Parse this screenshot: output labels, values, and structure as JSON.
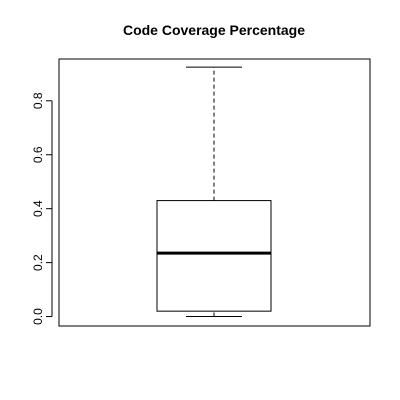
{
  "chart_data": {
    "type": "boxplot",
    "title": "Code Coverage Percentage",
    "xlabel": "",
    "ylabel": "",
    "ylim": [
      -0.035,
      0.955
    ],
    "yticks": [
      0.0,
      0.2,
      0.4,
      0.6,
      0.8
    ],
    "ytick_labels": [
      "0.0",
      "0.2",
      "0.4",
      "0.6",
      "0.8"
    ],
    "box": {
      "min": 0.0,
      "q1": 0.02,
      "median": 0.235,
      "q3": 0.43,
      "max": 0.925
    },
    "grid": false,
    "colors": {
      "stroke": "#000000",
      "fill": "#ffffff"
    }
  }
}
